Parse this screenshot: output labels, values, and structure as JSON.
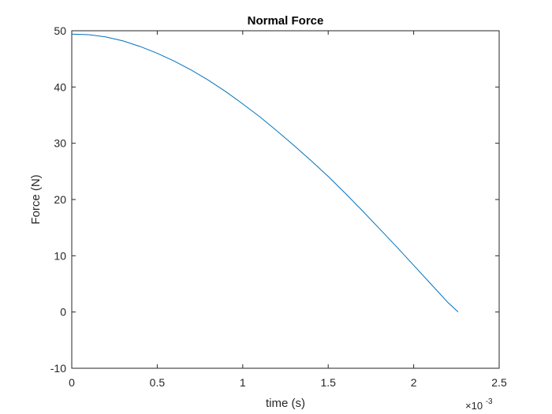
{
  "chart_data": {
    "type": "line",
    "title": "Normal Force",
    "xlabel": "time (s)",
    "ylabel": "Force (N)",
    "x_exponent_label": {
      "base": "×10",
      "exponent": "-3"
    },
    "xlim": [
      0,
      2.5
    ],
    "ylim": [
      -10,
      50
    ],
    "x_ticks": [
      0,
      0.5,
      1,
      1.5,
      2,
      2.5
    ],
    "x_tick_labels": [
      "0",
      "0.5",
      "1",
      "1.5",
      "2",
      "2.5"
    ],
    "y_ticks": [
      -10,
      0,
      10,
      20,
      30,
      40,
      50
    ],
    "y_tick_labels": [
      "-10",
      "0",
      "10",
      "20",
      "30",
      "40",
      "50"
    ],
    "grid": false,
    "series": [
      {
        "color": "#0072BD",
        "x": [
          0,
          0.1,
          0.2,
          0.3,
          0.4,
          0.5,
          0.6,
          0.7,
          0.8,
          0.9,
          1.0,
          1.1,
          1.2,
          1.3,
          1.4,
          1.5,
          1.6,
          1.7,
          1.8,
          1.9,
          2.0,
          2.1,
          2.2,
          2.26
        ],
        "y": [
          49.4,
          49.3,
          48.9,
          48.2,
          47.2,
          46.0,
          44.6,
          43.0,
          41.2,
          39.2,
          37.0,
          34.7,
          32.2,
          29.6,
          26.9,
          24.1,
          21.1,
          18.0,
          14.8,
          11.6,
          8.3,
          5.0,
          1.7,
          0.0
        ]
      }
    ]
  }
}
